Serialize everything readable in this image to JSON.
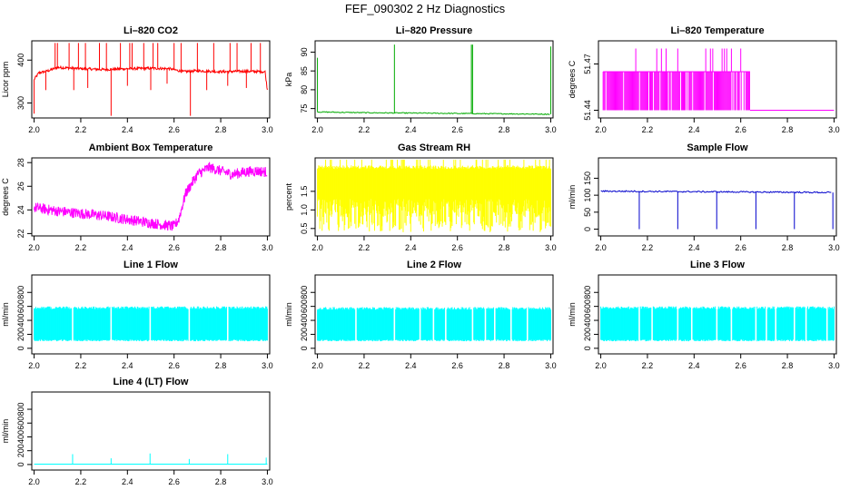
{
  "page_title": "FEF_090302  2 Hz Diagnostics",
  "chart_data": [
    {
      "type": "line",
      "title": "Li–820 CO2",
      "ylabel": "Licor ppm",
      "xlabel": "",
      "color": "#ff0000",
      "xlim": [
        1.99,
        3.01
      ],
      "ylim": [
        265,
        445
      ],
      "x_ticks": [
        "2.0",
        "2.2",
        "2.4",
        "2.6",
        "2.8",
        "3.0"
      ],
      "y_ticks": [
        {
          "value": 300,
          "label": "300"
        },
        {
          "value": 400,
          "label": "400"
        }
      ],
      "series": [
        {
          "x": [
            2.0,
            2.02,
            2.06,
            2.1,
            2.2,
            2.3,
            2.4,
            2.5,
            2.58,
            2.64,
            2.7,
            2.8,
            2.9,
            2.99,
            3.0
          ],
          "values": [
            355,
            370,
            375,
            383,
            380,
            378,
            380,
            381,
            380,
            373,
            375,
            373,
            374,
            373,
            330
          ],
          "spikes_high": [
            2.09,
            2.1,
            2.15,
            2.19,
            2.22,
            2.28,
            2.31,
            2.37,
            2.41,
            2.42,
            2.47,
            2.51,
            2.53,
            2.6,
            2.63,
            2.7,
            2.77,
            2.84,
            2.87,
            2.93,
            2.97
          ],
          "spike_high_value": 440,
          "spikes_low": [
            2.0,
            2.05,
            2.17,
            2.23,
            2.33,
            2.4,
            2.5,
            2.57,
            2.67,
            2.74,
            2.83,
            2.91
          ],
          "spike_low_values": [
            275,
            330,
            330,
            335,
            270,
            340,
            330,
            345,
            270,
            330,
            340,
            335
          ]
        }
      ]
    },
    {
      "type": "line",
      "title": "Li–820 Pressure",
      "ylabel": "kPa",
      "xlabel": "",
      "color": "#00aa00",
      "xlim": [
        1.99,
        3.01
      ],
      "ylim": [
        72.5,
        93
      ],
      "x_ticks": [
        "2.0",
        "2.2",
        "2.4",
        "2.6",
        "2.8",
        "3.0"
      ],
      "y_ticks": [
        {
          "value": 75,
          "label": "75"
        },
        {
          "value": 80,
          "label": "80"
        },
        {
          "value": 85,
          "label": "85"
        },
        {
          "value": 90,
          "label": "90"
        }
      ],
      "series": [
        {
          "x": [
            2.0,
            2.2,
            2.4,
            2.6,
            2.8,
            3.0
          ],
          "values": [
            74.1,
            73.9,
            73.8,
            73.7,
            73.6,
            73.5
          ],
          "spikes_high": [
            2.0,
            2.33,
            2.66,
            2.665,
            3.0
          ],
          "spike_high_values": [
            88.5,
            92,
            92,
            92,
            91.5
          ]
        }
      ]
    },
    {
      "type": "line",
      "title": "Li–820 Temperature",
      "ylabel": "degrees C",
      "xlabel": "",
      "color": "#ff00ff",
      "xlim": [
        1.99,
        3.01
      ],
      "ylim": [
        51.435,
        51.485
      ],
      "x_ticks": [
        "2.0",
        "2.2",
        "2.4",
        "2.6",
        "2.8",
        "3.0"
      ],
      "y_ticks": [
        {
          "value": 51.44,
          "label": "51.44"
        },
        {
          "value": 51.47,
          "label": "51.47"
        }
      ],
      "series": [
        {
          "band_x": [
            2.01,
            2.64
          ],
          "band_values": [
            51.44,
            51.465
          ],
          "high_spikes": [
            2.15,
            2.24,
            2.26,
            2.28,
            2.33,
            2.45,
            2.47,
            2.48,
            2.52,
            2.53,
            2.54,
            2.56,
            2.6
          ],
          "high_value": 51.48,
          "after_x": [
            2.64,
            3.0
          ],
          "after_value": 51.44
        }
      ]
    },
    {
      "type": "line",
      "title": "Ambient Box Temperature",
      "ylabel": "degrees C",
      "xlabel": "",
      "color": "#ff00ff",
      "xlim": [
        1.99,
        3.01
      ],
      "ylim": [
        21.8,
        28.4
      ],
      "x_ticks": [
        "2.0",
        "2.2",
        "2.4",
        "2.6",
        "2.8",
        "3.0"
      ],
      "y_ticks": [
        {
          "value": 22,
          "label": "22"
        },
        {
          "value": 24,
          "label": "24"
        },
        {
          "value": 26,
          "label": "26"
        },
        {
          "value": 28,
          "label": "28"
        }
      ],
      "series": [
        {
          "x": [
            2.0,
            2.1,
            2.2,
            2.3,
            2.4,
            2.5,
            2.6,
            2.62,
            2.65,
            2.7,
            2.75,
            2.8,
            2.85,
            2.9,
            2.95,
            3.0
          ],
          "values": [
            24.2,
            23.9,
            23.7,
            23.5,
            23.2,
            22.9,
            22.6,
            23.2,
            25.4,
            27.0,
            27.6,
            27.3,
            27.0,
            27.2,
            27.3,
            27.2
          ],
          "noise": 0.45
        }
      ]
    },
    {
      "type": "line",
      "title": "Gas Stream RH",
      "ylabel": "percent",
      "xlabel": "",
      "color": "#ffff00",
      "xlim": [
        1.99,
        3.01
      ],
      "ylim": [
        0.3,
        2.4
      ],
      "x_ticks": [
        "2.0",
        "2.2",
        "2.4",
        "2.6",
        "2.8",
        "3.0"
      ],
      "y_ticks": [
        {
          "value": 0.5,
          "label": "0.5"
        },
        {
          "value": 1.0,
          "label": "1.0"
        },
        {
          "value": 1.5,
          "label": "1.5"
        }
      ],
      "series": [
        {
          "x_range": [
            2.0,
            3.0
          ],
          "upper": 2.2,
          "upper_alt": 2.35,
          "lower": 0.8,
          "lower_min": 0.4
        }
      ]
    },
    {
      "type": "line",
      "title": "Sample Flow",
      "ylabel": "ml/min",
      "xlabel": "",
      "color": "#0000cc",
      "xlim": [
        1.99,
        3.01
      ],
      "ylim": [
        -20,
        210
      ],
      "x_ticks": [
        "2.0",
        "2.2",
        "2.4",
        "2.6",
        "2.8",
        "3.0"
      ],
      "y_ticks": [
        {
          "value": 0,
          "label": "0"
        },
        {
          "value": 50,
          "label": "50"
        },
        {
          "value": 100,
          "label": "100"
        },
        {
          "value": 150,
          "label": "150"
        }
      ],
      "series": [
        {
          "x": [
            2.0,
            2.5,
            2.99
          ],
          "values": [
            112,
            110,
            108
          ],
          "dips": [
            2.165,
            2.33,
            2.497,
            2.665,
            2.83,
            2.995
          ],
          "dip_value": 0
        }
      ]
    },
    {
      "type": "line",
      "title": "Line 1 Flow",
      "ylabel": "ml/min",
      "xlabel": "",
      "color": "#00ffff",
      "xlim": [
        1.99,
        3.01
      ],
      "ylim": [
        -80,
        1050
      ],
      "x_ticks": [
        "2.0",
        "2.2",
        "2.4",
        "2.6",
        "2.8",
        "3.0"
      ],
      "y_ticks": [
        {
          "value": 0,
          "label": "0"
        },
        {
          "value": 200,
          "label": "200"
        },
        {
          "value": 400,
          "label": "400"
        },
        {
          "value": 600,
          "label": "600"
        },
        {
          "value": 800,
          "label": "800"
        }
      ],
      "series": [
        {
          "x_range": [
            2.0,
            3.0
          ],
          "upper": 600,
          "lower": 100,
          "gaps": [
            2.165,
            2.33,
            2.497,
            2.665,
            2.83
          ]
        }
      ]
    },
    {
      "type": "line",
      "title": "Line 2 Flow",
      "ylabel": "ml/min",
      "xlabel": "",
      "color": "#00ffff",
      "xlim": [
        1.99,
        3.01
      ],
      "ylim": [
        -80,
        1050
      ],
      "x_ticks": [
        "2.0",
        "2.2",
        "2.4",
        "2.6",
        "2.8",
        "3.0"
      ],
      "y_ticks": [
        {
          "value": 0,
          "label": "0"
        },
        {
          "value": 200,
          "label": "200"
        },
        {
          "value": 400,
          "label": "400"
        },
        {
          "value": 600,
          "label": "600"
        },
        {
          "value": 800,
          "label": "800"
        }
      ],
      "series": [
        {
          "x_range": [
            2.0,
            3.0
          ],
          "upper": 590,
          "lower": 100,
          "gaps": [
            2.165,
            2.33,
            2.44,
            2.497,
            2.55,
            2.665,
            2.72,
            2.76,
            2.83,
            2.9
          ]
        }
      ]
    },
    {
      "type": "line",
      "title": "Line 3 Flow",
      "ylabel": "ml/min",
      "xlabel": "",
      "color": "#00ffff",
      "xlim": [
        1.99,
        3.01
      ],
      "ylim": [
        -80,
        1050
      ],
      "x_ticks": [
        "2.0",
        "2.2",
        "2.4",
        "2.6",
        "2.8",
        "3.0"
      ],
      "y_ticks": [
        {
          "value": 0,
          "label": "0"
        },
        {
          "value": 200,
          "label": "200"
        },
        {
          "value": 400,
          "label": "400"
        },
        {
          "value": 600,
          "label": "600"
        },
        {
          "value": 800,
          "label": "800"
        }
      ],
      "series": [
        {
          "x_range": [
            2.0,
            3.0
          ],
          "upper": 600,
          "lower": 100,
          "gaps": [
            2.165,
            2.22,
            2.33,
            2.39,
            2.497,
            2.56,
            2.665,
            2.71,
            2.75,
            2.83,
            2.88,
            2.97
          ]
        }
      ]
    },
    {
      "type": "line",
      "title": "Line 4 (LT) Flow",
      "ylabel": "ml/min",
      "xlabel": "",
      "color": "#00ffff",
      "xlim": [
        1.99,
        3.01
      ],
      "ylim": [
        -80,
        1050
      ],
      "x_ticks": [
        "2.0",
        "2.2",
        "2.4",
        "2.6",
        "2.8",
        "3.0"
      ],
      "y_ticks": [
        {
          "value": 0,
          "label": "0"
        },
        {
          "value": 200,
          "label": "200"
        },
        {
          "value": 400,
          "label": "400"
        },
        {
          "value": 600,
          "label": "600"
        },
        {
          "value": 800,
          "label": "800"
        }
      ],
      "series": [
        {
          "x": [
            2.0,
            3.0
          ],
          "values": [
            5,
            5
          ],
          "spikes": [
            2.165,
            2.33,
            2.497,
            2.665,
            2.83,
            2.995
          ],
          "spike_values": [
            150,
            90,
            160,
            80,
            150,
            100
          ]
        }
      ]
    }
  ]
}
